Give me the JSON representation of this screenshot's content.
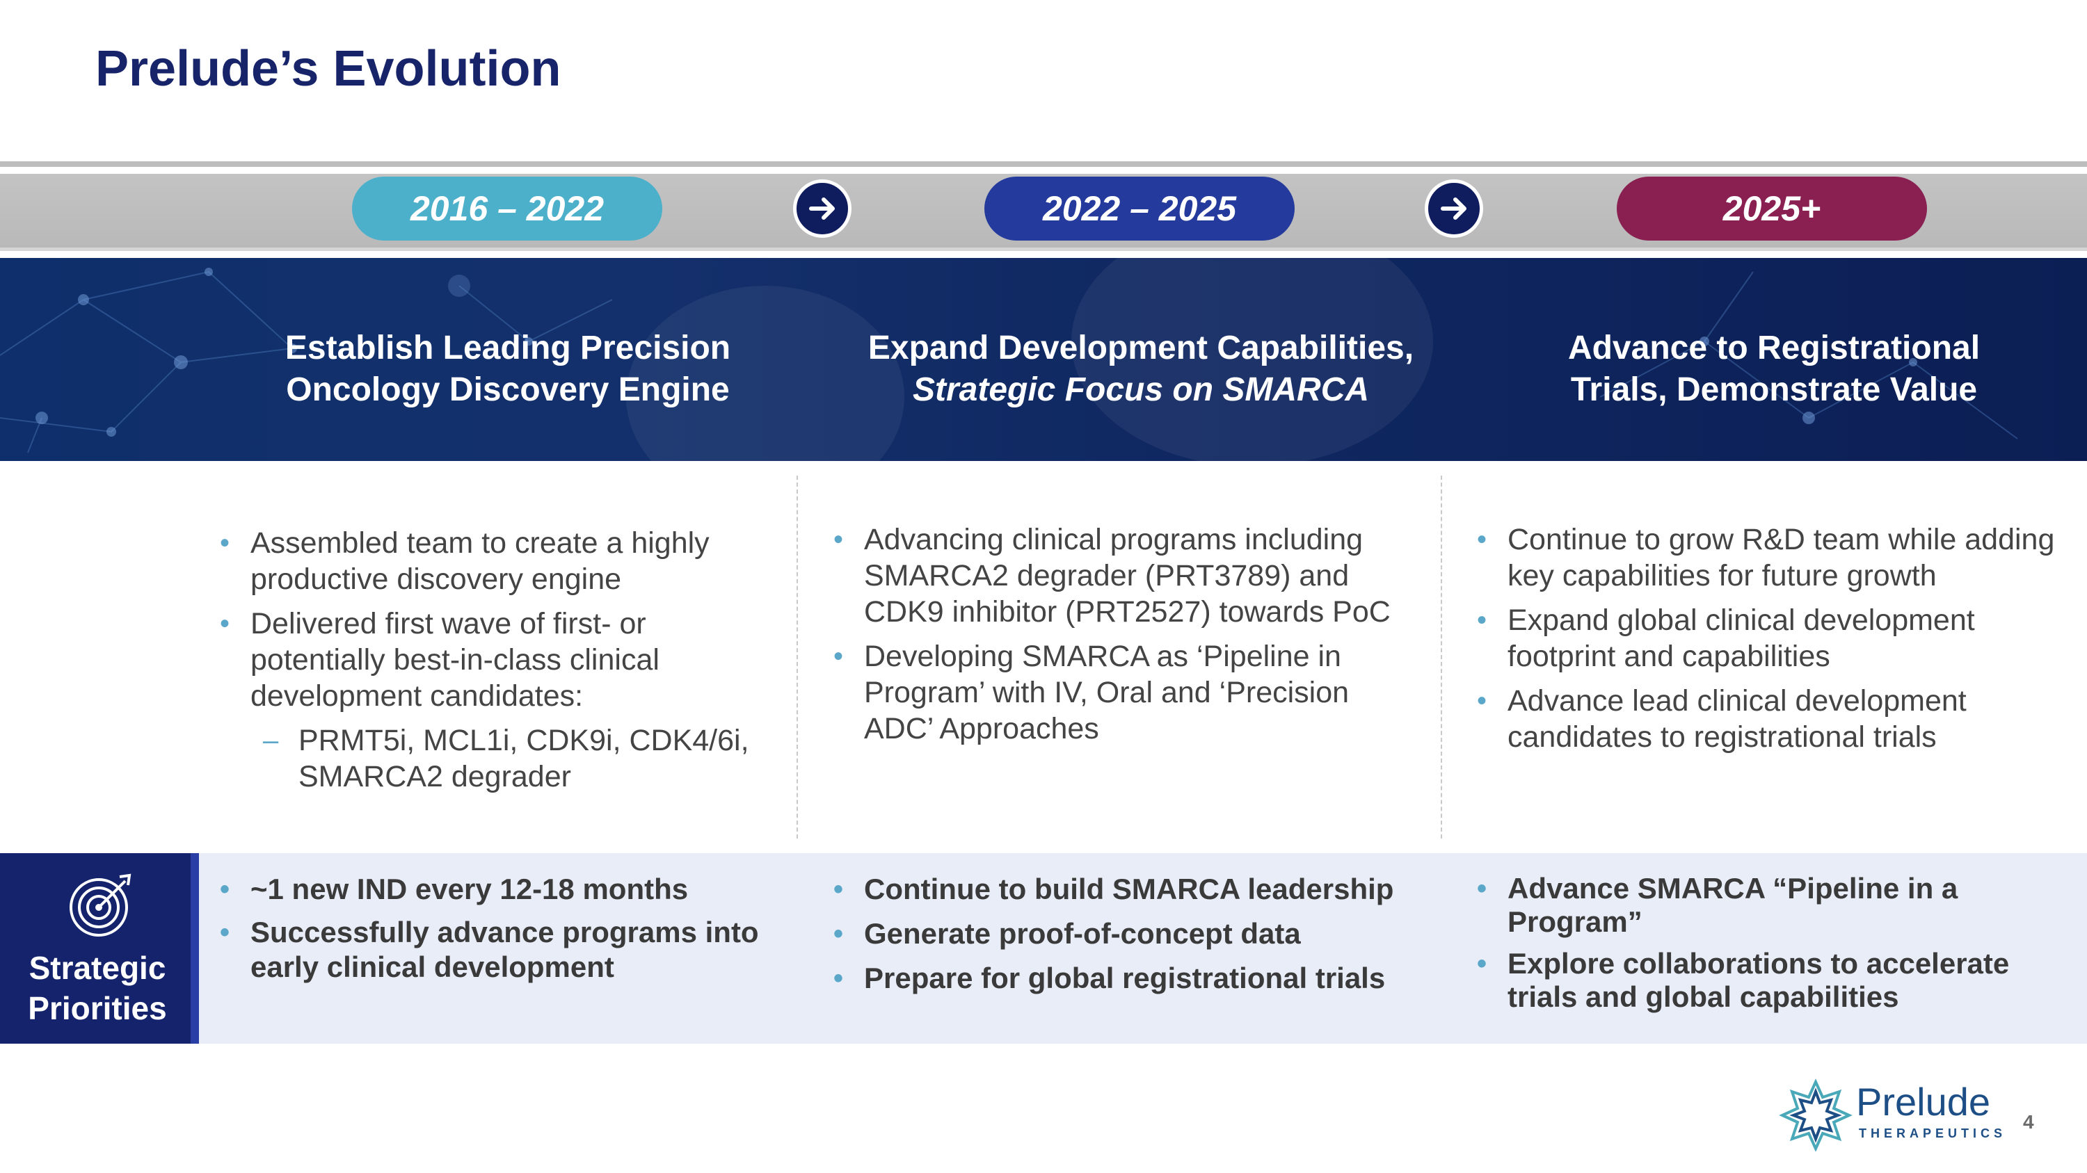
{
  "slide": {
    "title": "Prelude’s Evolution",
    "page_number": "4"
  },
  "timeline": {
    "periods": [
      {
        "label": "2016 – 2022",
        "color": "#4cb0cb"
      },
      {
        "label": "2022 – 2025",
        "color": "#243a9c"
      },
      {
        "label": "2025+",
        "color": "#8a1f52"
      }
    ]
  },
  "phases": [
    {
      "title_line1": "Establish Leading Precision",
      "title_line2": "Oncology Discovery Engine"
    },
    {
      "title_line1": "Expand Development Capabilities,",
      "title_line2": "Strategic Focus on SMARCA"
    },
    {
      "title_line1": "Advance to Registrational",
      "title_line2": "Trials, Demonstrate Value"
    }
  ],
  "details": [
    {
      "bullets": [
        "Assembled team to create a highly productive discovery engine",
        "Delivered first wave of first- or potentially best-in-class clinical development candidates:"
      ],
      "sub_bullet": "PRMT5i, MCL1i, CDK9i, CDK4/6i, SMARCA2 degrader"
    },
    {
      "bullets": [
        "Advancing clinical programs including SMARCA2 degrader (PRT3789) and CDK9 inhibitor (PRT2527) towards PoC",
        "Developing SMARCA as ‘Pipeline in Program’ with IV, Oral and ‘Precision ADC’ Approaches"
      ]
    },
    {
      "bullets": [
        "Continue to grow R&D team while adding key capabilities for future growth",
        "Expand global clinical development footprint and capabilities",
        "Advance lead clinical development candidates to registrational trials"
      ]
    }
  ],
  "strategic_priorities": {
    "label_line1": "Strategic",
    "label_line2": "Priorities",
    "icon": "target-icon",
    "columns": [
      [
        "~1 new IND every 12-18 months",
        "Successfully advance programs into early clinical development"
      ],
      [
        "Continue to build SMARCA leadership",
        "Generate proof-of-concept data",
        "Prepare for global registrational trials"
      ],
      [
        "Advance SMARCA “Pipeline in a Program”",
        "Explore collaborations to accelerate trials and global capabilities"
      ]
    ]
  },
  "logo": {
    "name": "Prelude",
    "subtitle": "THERAPEUTICS"
  }
}
